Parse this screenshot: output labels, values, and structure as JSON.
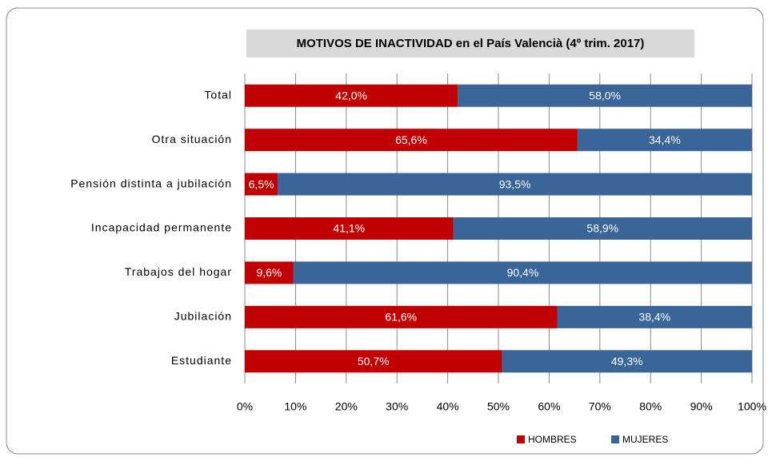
{
  "chart_data": {
    "type": "stacked_barh",
    "title": "MOTIVOS DE INACTIVIDAD en el País Valencià (4º trim. 2017)",
    "categories": [
      "Total",
      "Otra situación",
      "Pensión distinta a jubilación",
      "Incapacidad permanente",
      "Trabajos del hogar",
      "Jubilación",
      "Estudiante"
    ],
    "series": [
      {
        "name": "HOMBRES",
        "color": "#c00000",
        "values": [
          42.0,
          65.6,
          6.5,
          41.1,
          9.6,
          61.6,
          50.7
        ],
        "value_labels": [
          "42,0%",
          "65,6%",
          "6,5%",
          "41,1%",
          "9,6%",
          "61,6%",
          "50,7%"
        ]
      },
      {
        "name": "MUJERES",
        "color": "#3a6598",
        "values": [
          58.0,
          34.4,
          93.5,
          58.9,
          90.4,
          38.4,
          49.3
        ],
        "value_labels": [
          "58,0%",
          "34,4%",
          "93,5%",
          "58,9%",
          "90,4%",
          "38,4%",
          "49,3%"
        ]
      }
    ],
    "xlim": [
      0,
      100
    ],
    "xticks": [
      {
        "value": 0,
        "label": "0%"
      },
      {
        "value": 10,
        "label": "10%"
      },
      {
        "value": 20,
        "label": "20%"
      },
      {
        "value": 30,
        "label": "30%"
      },
      {
        "value": 40,
        "label": "40%"
      },
      {
        "value": 50,
        "label": "50%"
      },
      {
        "value": 60,
        "label": "60%"
      },
      {
        "value": 70,
        "label": "70%"
      },
      {
        "value": 80,
        "label": "80%"
      },
      {
        "value": 90,
        "label": "90%"
      },
      {
        "value": 100,
        "label": "100%"
      }
    ],
    "grid": true,
    "legend": "bottom"
  }
}
